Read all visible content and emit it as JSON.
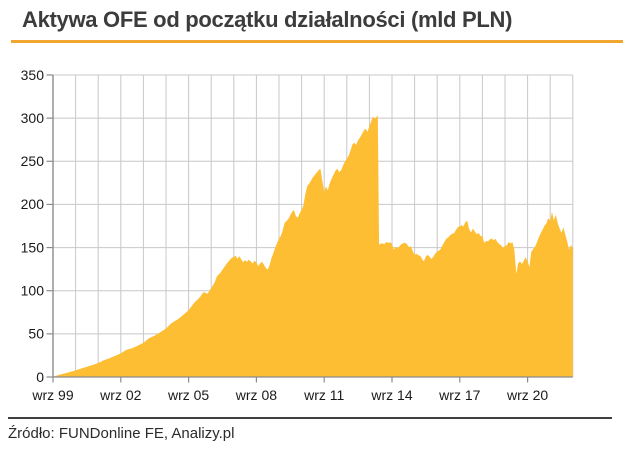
{
  "title": "Aktywa OFE od początku działalności (mld PLN)",
  "footer": {
    "source": "Źródło: FUNDonline FE, Analizy.pl"
  },
  "colors": {
    "area_fill": "#FDBE33",
    "title_underline": "#F0A62F",
    "grid": "#C8C8C8",
    "axis": "#8C8C8C",
    "tick_label": "#1A1A1A",
    "title_text": "#3C3C3C",
    "footer_line": "#3F3F3F"
  },
  "chart_data": {
    "type": "area",
    "title": "Aktywa OFE od początku działalności (mld PLN)",
    "ylabel": "",
    "xlabel": "",
    "unit": "mld PLN",
    "grid": true,
    "ylim": [
      0,
      350
    ],
    "y_ticks": [
      0,
      50,
      100,
      150,
      200,
      250,
      300,
      350
    ],
    "x_range_years": [
      1999.67,
      2022.67
    ],
    "x_tick_interval_years": 3,
    "x_tick_labels": [
      "wrz 99",
      "wrz 02",
      "wrz 05",
      "wrz 08",
      "wrz 11",
      "wrz 14",
      "wrz 17",
      "wrz 20"
    ],
    "series": [
      {
        "name": "Aktywa OFE",
        "points": [
          [
            1999.67,
            0.1
          ],
          [
            1999.92,
            2.3
          ],
          [
            2000.17,
            4.0
          ],
          [
            2000.42,
            5.8
          ],
          [
            2000.67,
            7.6
          ],
          [
            2000.92,
            9.9
          ],
          [
            2001.17,
            11.8
          ],
          [
            2001.42,
            13.9
          ],
          [
            2001.67,
            16.2
          ],
          [
            2001.92,
            19.4
          ],
          [
            2002.17,
            21.8
          ],
          [
            2002.42,
            24.4
          ],
          [
            2002.67,
            27.3
          ],
          [
            2002.92,
            31.6
          ],
          [
            2003.17,
            33.4
          ],
          [
            2003.42,
            36.4
          ],
          [
            2003.67,
            39.8
          ],
          [
            2003.92,
            44.8
          ],
          [
            2004.17,
            48.0
          ],
          [
            2004.42,
            51.8
          ],
          [
            2004.67,
            56.2
          ],
          [
            2004.92,
            62.6
          ],
          [
            2005.17,
            66.5
          ],
          [
            2005.42,
            71.5
          ],
          [
            2005.67,
            77.5
          ],
          [
            2005.92,
            86.1
          ],
          [
            2006.17,
            92.5
          ],
          [
            2006.33,
            98.5
          ],
          [
            2006.5,
            96.5
          ],
          [
            2006.67,
            103.0
          ],
          [
            2006.83,
            110.0
          ],
          [
            2006.92,
            116.6
          ],
          [
            2007.08,
            121.0
          ],
          [
            2007.25,
            127.5
          ],
          [
            2007.42,
            133.5
          ],
          [
            2007.58,
            138.0
          ],
          [
            2007.75,
            140.3
          ],
          [
            2007.83,
            137.0
          ],
          [
            2007.92,
            140.0
          ],
          [
            2008.08,
            133.0
          ],
          [
            2008.17,
            135.5
          ],
          [
            2008.25,
            133.5
          ],
          [
            2008.33,
            136.0
          ],
          [
            2008.42,
            134.0
          ],
          [
            2008.5,
            131.5
          ],
          [
            2008.58,
            134.5
          ],
          [
            2008.67,
            133.0
          ],
          [
            2008.75,
            128.5
          ],
          [
            2008.83,
            131.5
          ],
          [
            2008.92,
            133.5
          ],
          [
            2009.0,
            130.0
          ],
          [
            2009.08,
            126.5
          ],
          [
            2009.17,
            124.5
          ],
          [
            2009.25,
            129.5
          ],
          [
            2009.33,
            137.0
          ],
          [
            2009.42,
            143.5
          ],
          [
            2009.5,
            150.0
          ],
          [
            2009.58,
            155.0
          ],
          [
            2009.67,
            160.0
          ],
          [
            2009.75,
            163.5
          ],
          [
            2009.83,
            169.5
          ],
          [
            2009.92,
            178.6
          ],
          [
            2010.08,
            183.0
          ],
          [
            2010.17,
            187.5
          ],
          [
            2010.25,
            191.5
          ],
          [
            2010.33,
            193.5
          ],
          [
            2010.42,
            186.5
          ],
          [
            2010.5,
            184.5
          ],
          [
            2010.58,
            189.5
          ],
          [
            2010.67,
            194.0
          ],
          [
            2010.75,
            198.5
          ],
          [
            2010.83,
            211.5
          ],
          [
            2010.92,
            221.3
          ],
          [
            2011.0,
            224.0
          ],
          [
            2011.08,
            227.5
          ],
          [
            2011.17,
            231.5
          ],
          [
            2011.25,
            234.0
          ],
          [
            2011.33,
            236.5
          ],
          [
            2011.42,
            239.5
          ],
          [
            2011.5,
            241.5
          ],
          [
            2011.58,
            228.0
          ],
          [
            2011.67,
            214.5
          ],
          [
            2011.75,
            221.0
          ],
          [
            2011.83,
            216.5
          ],
          [
            2011.92,
            224.7
          ],
          [
            2012.0,
            230.0
          ],
          [
            2012.08,
            234.5
          ],
          [
            2012.17,
            239.0
          ],
          [
            2012.25,
            241.5
          ],
          [
            2012.33,
            237.5
          ],
          [
            2012.42,
            239.5
          ],
          [
            2012.5,
            245.0
          ],
          [
            2012.58,
            249.5
          ],
          [
            2012.67,
            253.0
          ],
          [
            2012.75,
            256.5
          ],
          [
            2012.83,
            262.0
          ],
          [
            2012.92,
            269.6
          ],
          [
            2013.0,
            271.5
          ],
          [
            2013.08,
            269.0
          ],
          [
            2013.17,
            274.5
          ],
          [
            2013.25,
            277.5
          ],
          [
            2013.33,
            281.0
          ],
          [
            2013.42,
            285.5
          ],
          [
            2013.5,
            288.0
          ],
          [
            2013.58,
            284.0
          ],
          [
            2013.67,
            290.5
          ],
          [
            2013.75,
            296.5
          ],
          [
            2013.83,
            301.5
          ],
          [
            2013.92,
            299.3
          ],
          [
            2014.04,
            303.3
          ],
          [
            2014.1,
            153.1
          ],
          [
            2014.17,
            154.5
          ],
          [
            2014.25,
            155.0
          ],
          [
            2014.33,
            154.0
          ],
          [
            2014.42,
            156.5
          ],
          [
            2014.5,
            155.5
          ],
          [
            2014.58,
            156.0
          ],
          [
            2014.67,
            154.5
          ],
          [
            2014.75,
            147.5
          ],
          [
            2014.83,
            151.0
          ],
          [
            2014.92,
            149.1
          ],
          [
            2015.0,
            151.5
          ],
          [
            2015.08,
            154.0
          ],
          [
            2015.17,
            155.0
          ],
          [
            2015.25,
            155.5
          ],
          [
            2015.33,
            154.0
          ],
          [
            2015.42,
            150.5
          ],
          [
            2015.5,
            151.5
          ],
          [
            2015.58,
            146.5
          ],
          [
            2015.67,
            141.5
          ],
          [
            2015.75,
            143.0
          ],
          [
            2015.83,
            141.0
          ],
          [
            2015.92,
            140.5
          ],
          [
            2016.0,
            136.5
          ],
          [
            2016.08,
            134.0
          ],
          [
            2016.17,
            140.0
          ],
          [
            2016.25,
            141.5
          ],
          [
            2016.33,
            139.5
          ],
          [
            2016.42,
            136.8
          ],
          [
            2016.5,
            139.5
          ],
          [
            2016.58,
            143.0
          ],
          [
            2016.67,
            145.5
          ],
          [
            2016.75,
            146.5
          ],
          [
            2016.83,
            148.5
          ],
          [
            2016.92,
            153.4
          ],
          [
            2017.0,
            157.0
          ],
          [
            2017.08,
            160.5
          ],
          [
            2017.17,
            162.0
          ],
          [
            2017.25,
            164.5
          ],
          [
            2017.33,
            166.0
          ],
          [
            2017.42,
            166.8
          ],
          [
            2017.5,
            170.5
          ],
          [
            2017.58,
            173.5
          ],
          [
            2017.67,
            174.5
          ],
          [
            2017.75,
            176.0
          ],
          [
            2017.83,
            174.5
          ],
          [
            2017.92,
            179.5
          ],
          [
            2018.0,
            180.9
          ],
          [
            2018.08,
            171.5
          ],
          [
            2018.17,
            167.5
          ],
          [
            2018.25,
            172.0
          ],
          [
            2018.33,
            169.0
          ],
          [
            2018.42,
            165.5
          ],
          [
            2018.5,
            167.0
          ],
          [
            2018.58,
            163.5
          ],
          [
            2018.67,
            163.0
          ],
          [
            2018.75,
            155.5
          ],
          [
            2018.83,
            157.5
          ],
          [
            2018.92,
            157.3
          ],
          [
            2019.0,
            159.5
          ],
          [
            2019.08,
            160.5
          ],
          [
            2019.17,
            158.5
          ],
          [
            2019.25,
            160.0
          ],
          [
            2019.33,
            156.5
          ],
          [
            2019.42,
            154.0
          ],
          [
            2019.5,
            152.5
          ],
          [
            2019.58,
            149.5
          ],
          [
            2019.67,
            152.0
          ],
          [
            2019.75,
            152.5
          ],
          [
            2019.83,
            156.5
          ],
          [
            2019.92,
            154.8
          ],
          [
            2020.0,
            156.0
          ],
          [
            2020.08,
            147.5
          ],
          [
            2020.17,
            119.5
          ],
          [
            2020.25,
            131.5
          ],
          [
            2020.33,
            134.0
          ],
          [
            2020.42,
            131.0
          ],
          [
            2020.5,
            134.5
          ],
          [
            2020.58,
            139.0
          ],
          [
            2020.67,
            134.0
          ],
          [
            2020.75,
            127.5
          ],
          [
            2020.83,
            144.5
          ],
          [
            2020.92,
            148.6
          ],
          [
            2021.0,
            151.0
          ],
          [
            2021.08,
            156.0
          ],
          [
            2021.17,
            162.0
          ],
          [
            2021.25,
            166.5
          ],
          [
            2021.33,
            170.5
          ],
          [
            2021.42,
            175.5
          ],
          [
            2021.5,
            178.0
          ],
          [
            2021.58,
            184.0
          ],
          [
            2021.67,
            181.0
          ],
          [
            2021.75,
            191.5
          ],
          [
            2021.83,
            181.5
          ],
          [
            2021.92,
            188.0
          ],
          [
            2022.0,
            178.5
          ],
          [
            2022.08,
            172.5
          ],
          [
            2022.17,
            167.0
          ],
          [
            2022.25,
            173.5
          ],
          [
            2022.33,
            166.0
          ],
          [
            2022.42,
            157.5
          ],
          [
            2022.5,
            147.5
          ],
          [
            2022.58,
            153.0
          ],
          [
            2022.67,
            149.5
          ]
        ]
      }
    ]
  }
}
